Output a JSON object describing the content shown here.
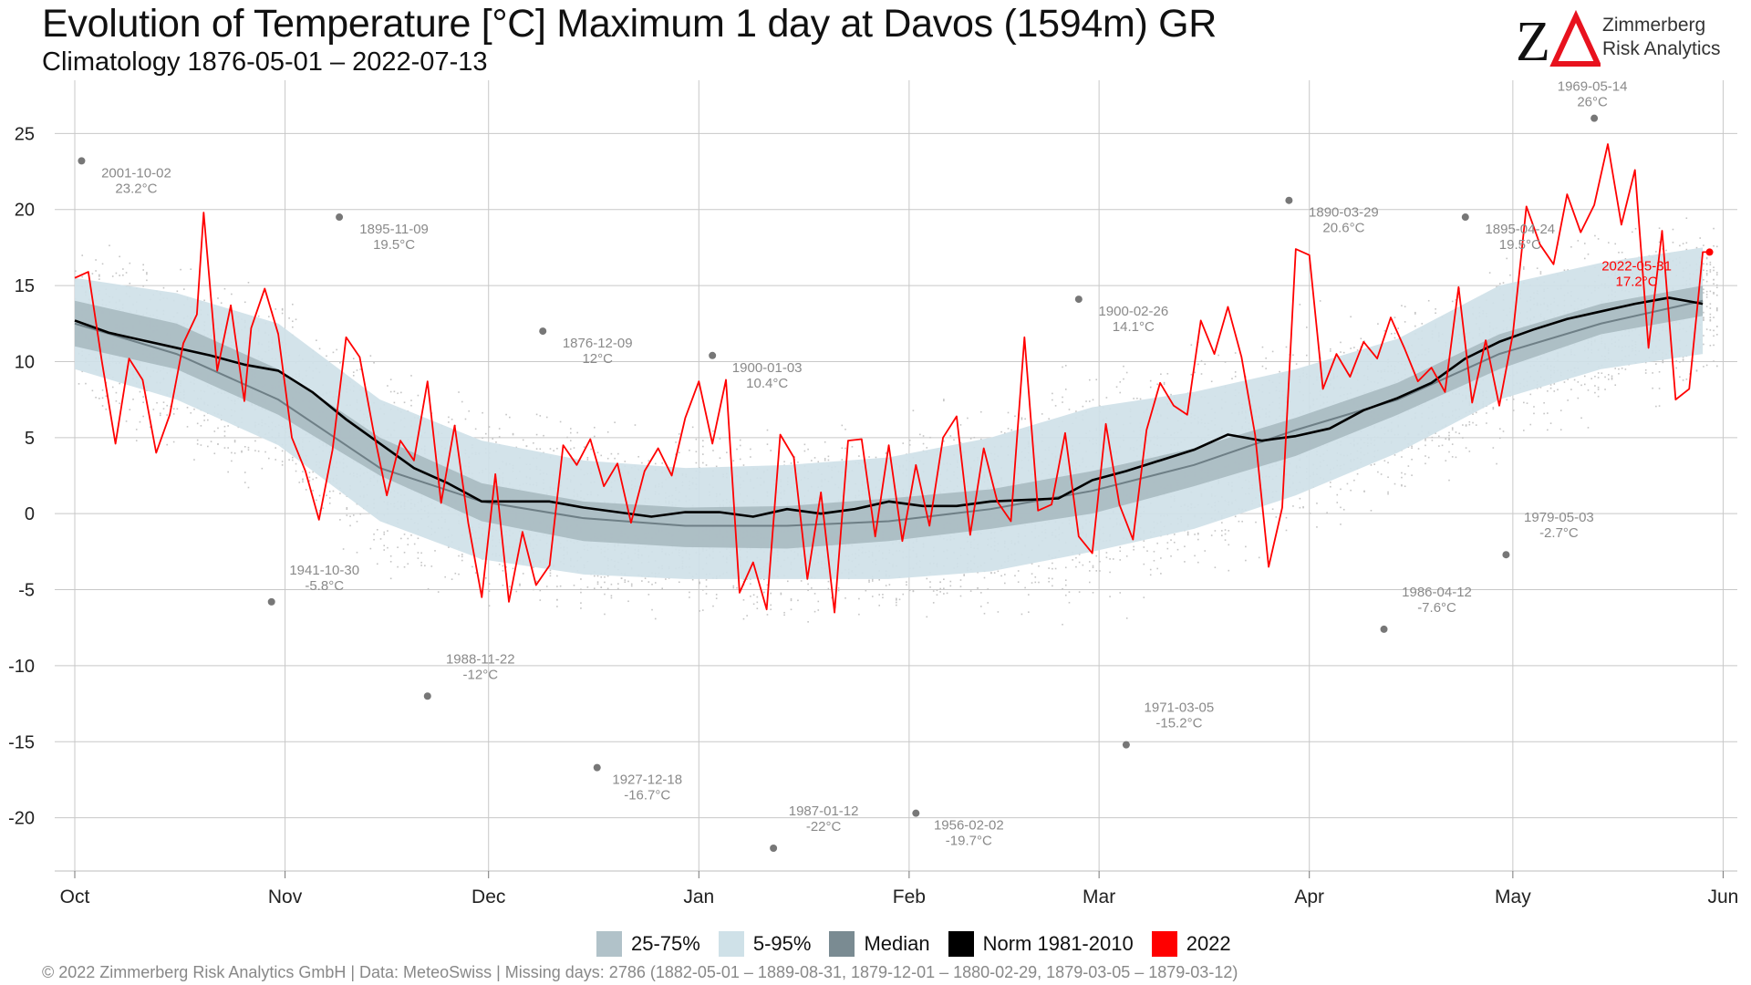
{
  "header": {
    "title": "Evolution of Temperature [°C] Maximum 1 day at Davos (1594m) GR",
    "subtitle": "Climatology 1876-05-01 – 2022-07-13"
  },
  "logo": {
    "mark": "ZΔ",
    "line1": "Zimmerberg",
    "line2": "Risk Analytics",
    "colors": {
      "z": "#111111",
      "delta": "#e8121e"
    }
  },
  "legend": {
    "items": [
      {
        "label": "25-75%",
        "color": "#b1c2c9"
      },
      {
        "label": "5-95%",
        "color": "#cfe1e8"
      },
      {
        "label": "Median",
        "color": "#7a8b92"
      },
      {
        "label": "Norm 1981-2010",
        "color": "#000000"
      },
      {
        "label": "2022",
        "color": "#ff0000"
      }
    ]
  },
  "footer": {
    "text": "©  2022 Zimmerberg Risk Analytics GmbH | Data: MeteoSwiss | Missing days: 2786 (1882-05-01 – 1889-08-31, 1879-12-01 – 1880-02-29, 1879-03-05 – 1879-03-12)"
  },
  "chart_data": {
    "type": "line",
    "title": "Evolution of Temperature [°C] Maximum 1 day at Davos (1594m) GR",
    "xlabel": "",
    "ylabel": "",
    "ylim": [
      -23.5,
      28.5
    ],
    "yticks": [
      25,
      20,
      15,
      10,
      5,
      0,
      -5,
      -10,
      -15,
      -20
    ],
    "xlim_day": [
      0,
      242
    ],
    "xticks": [
      {
        "label": "Oct",
        "day": 0
      },
      {
        "label": "Nov",
        "day": 31
      },
      {
        "label": "Dec",
        "day": 61
      },
      {
        "label": "Jan",
        "day": 92
      },
      {
        "label": "Feb",
        "day": 123
      },
      {
        "label": "Mar",
        "day": 151
      },
      {
        "label": "Apr",
        "day": 182
      },
      {
        "label": "May",
        "day": 212
      },
      {
        "label": "Jun",
        "day": 243
      }
    ],
    "grid": true,
    "x_unit": "day of season starting Oct 1",
    "bands": {
      "days": [
        0,
        15,
        30,
        45,
        60,
        75,
        90,
        105,
        120,
        135,
        150,
        165,
        180,
        195,
        210,
        225,
        240
      ],
      "p05": [
        9.5,
        7.5,
        4.5,
        -0.5,
        -3.0,
        -4.0,
        -4.3,
        -4.3,
        -4.3,
        -3.8,
        -2.5,
        -1.0,
        1.2,
        4.0,
        7.5,
        9.5,
        10.5
      ],
      "p25": [
        11.0,
        9.5,
        6.5,
        2.5,
        -0.5,
        -1.8,
        -2.2,
        -2.3,
        -1.8,
        -1.0,
        0.0,
        1.8,
        3.8,
        6.5,
        9.5,
        11.8,
        13.0
      ],
      "p75": [
        14.0,
        12.5,
        9.5,
        5.0,
        2.0,
        0.8,
        0.4,
        0.5,
        1.0,
        1.6,
        2.8,
        4.3,
        6.3,
        8.6,
        11.8,
        13.8,
        15.0
      ],
      "p95": [
        15.5,
        14.5,
        12.5,
        7.5,
        4.8,
        3.5,
        3.0,
        3.2,
        3.7,
        5.0,
        7.0,
        8.0,
        9.5,
        11.5,
        15.0,
        16.5,
        17.5
      ],
      "median": [
        12.5,
        10.5,
        7.5,
        3.0,
        0.8,
        -0.3,
        -0.8,
        -0.8,
        -0.5,
        0.3,
        1.5,
        3.2,
        5.5,
        7.5,
        10.5,
        12.5,
        14.0
      ]
    },
    "series": [
      {
        "name": "Norm 1981-2010",
        "color": "#000000",
        "x": [
          0,
          5,
          10,
          15,
          20,
          25,
          30,
          35,
          40,
          45,
          50,
          55,
          60,
          65,
          70,
          75,
          80,
          85,
          90,
          95,
          100,
          105,
          110,
          115,
          120,
          125,
          130,
          135,
          140,
          145,
          150,
          155,
          160,
          165,
          170,
          175,
          180,
          185,
          190,
          195,
          200,
          205,
          210,
          215,
          220,
          225,
          230,
          235,
          240
        ],
        "y": [
          12.7,
          11.9,
          11.4,
          10.9,
          10.4,
          9.8,
          9.4,
          8.0,
          6.2,
          4.6,
          3.0,
          2.0,
          0.8,
          0.8,
          0.8,
          0.4,
          0.1,
          -0.2,
          0.1,
          0.1,
          -0.2,
          0.3,
          0.0,
          0.3,
          0.8,
          0.5,
          0.5,
          0.8,
          0.9,
          1.0,
          2.2,
          2.8,
          3.5,
          4.2,
          5.2,
          4.8,
          5.1,
          5.6,
          6.8,
          7.6,
          8.6,
          10.2,
          11.3,
          12.1,
          12.8,
          13.3,
          13.8,
          14.2,
          13.8
        ]
      },
      {
        "name": "2022",
        "color": "#ff0000",
        "x": [
          0,
          2,
          4,
          6,
          8,
          10,
          12,
          14,
          16,
          18,
          19,
          21,
          23,
          25,
          26,
          28,
          30,
          32,
          34,
          36,
          38,
          40,
          42,
          44,
          46,
          48,
          50,
          52,
          54,
          56,
          58,
          60,
          62,
          64,
          66,
          68,
          70,
          72,
          74,
          76,
          78,
          80,
          82,
          84,
          86,
          88,
          90,
          92,
          94,
          96,
          98,
          100,
          102,
          104,
          106,
          108,
          110,
          112,
          114,
          116,
          118,
          120,
          122,
          124,
          126,
          128,
          130,
          132,
          134,
          136,
          138,
          140,
          142,
          144,
          146,
          148,
          150,
          152,
          154,
          156,
          158,
          160,
          162,
          164,
          166,
          168,
          170,
          172,
          174,
          176,
          178,
          180,
          182,
          184,
          186,
          188,
          190,
          192,
          194,
          196,
          198,
          200,
          202,
          204,
          206,
          208,
          210,
          212,
          214,
          216,
          218,
          220,
          222,
          224,
          226,
          228,
          230,
          232,
          234,
          236,
          238,
          240,
          241
        ],
        "y": [
          15.5,
          15.9,
          10.0,
          4.6,
          10.2,
          8.8,
          4.0,
          6.5,
          11.2,
          13.1,
          19.8,
          9.4,
          13.7,
          7.4,
          12.2,
          14.8,
          11.8,
          5.0,
          2.8,
          -0.4,
          4.2,
          11.6,
          10.3,
          5.5,
          1.2,
          4.8,
          3.5,
          8.7,
          0.7,
          5.8,
          -0.6,
          -5.5,
          2.6,
          -5.8,
          -1.2,
          -4.7,
          -3.4,
          4.5,
          3.2,
          4.9,
          1.8,
          3.3,
          -0.6,
          2.8,
          4.3,
          2.5,
          6.3,
          8.7,
          4.6,
          8.8,
          -5.2,
          -3.2,
          -6.3,
          5.2,
          3.7,
          -4.3,
          1.4,
          -6.5,
          4.8,
          4.9,
          -1.5,
          4.5,
          -1.8,
          3.2,
          -0.8,
          5.0,
          6.4,
          -1.4,
          4.3,
          0.8,
          -0.5,
          11.6,
          0.2,
          0.6,
          5.3,
          -1.5,
          -2.6,
          5.9,
          0.6,
          -1.7,
          5.5,
          8.6,
          7.1,
          6.5,
          12.7,
          10.5,
          13.6,
          10.3,
          5.2,
          -3.5,
          0.4,
          17.4,
          17.0,
          8.2,
          10.5,
          9.0,
          11.3,
          10.2,
          12.9,
          10.9,
          8.7,
          9.6,
          8.0,
          14.9,
          7.3,
          11.4,
          7.1,
          11.8,
          20.2,
          17.7,
          16.4,
          21.0,
          18.5,
          20.3,
          24.3,
          19.0,
          22.6,
          10.9,
          18.6,
          7.5,
          8.2,
          17.2,
          17.2
        ]
      }
    ],
    "scatter_range_note": "grey dots show daily values of all years",
    "records": [
      {
        "date": "2001-10-02",
        "value": "23.2°C",
        "day": 1,
        "y": 23.2,
        "color": "#888888"
      },
      {
        "date": "1895-11-09",
        "value": "19.5°C",
        "day": 39,
        "y": 19.5,
        "color": "#888888"
      },
      {
        "date": "1876-12-09",
        "value": "12°C",
        "day": 69,
        "y": 12.0,
        "color": "#888888"
      },
      {
        "date": "1900-01-03",
        "value": "10.4°C",
        "day": 94,
        "y": 10.4,
        "color": "#888888"
      },
      {
        "date": "1900-02-26",
        "value": "14.1°C",
        "day": 148,
        "y": 14.1,
        "color": "#888888"
      },
      {
        "date": "1890-03-29",
        "value": "20.6°C",
        "day": 179,
        "y": 20.6,
        "color": "#888888"
      },
      {
        "date": "1895-04-24",
        "value": "19.5°C",
        "day": 205,
        "y": 19.5,
        "color": "#888888"
      },
      {
        "date": "1969-05-14",
        "value": "26°C",
        "day": 224,
        "y": 26.0,
        "color": "#888888"
      },
      {
        "date": "2022-05-31",
        "value": "17.2°C",
        "day": 241,
        "y": 17.2,
        "color": "#ff0000"
      },
      {
        "date": "1941-10-30",
        "value": "-5.8°C",
        "day": 29,
        "y": -5.8,
        "color": "#888888"
      },
      {
        "date": "1988-11-22",
        "value": "-12°C",
        "day": 52,
        "y": -12.0,
        "color": "#888888"
      },
      {
        "date": "1927-12-18",
        "value": "-16.7°C",
        "day": 77,
        "y": -16.7,
        "color": "#888888"
      },
      {
        "date": "1987-01-12",
        "value": "-22°C",
        "day": 103,
        "y": -22.0,
        "color": "#888888"
      },
      {
        "date": "1956-02-02",
        "value": "-19.7°C",
        "day": 124,
        "y": -19.7,
        "color": "#888888"
      },
      {
        "date": "1971-03-05",
        "value": "-15.2°C",
        "day": 155,
        "y": -15.2,
        "color": "#888888"
      },
      {
        "date": "1986-04-12",
        "value": "-7.6°C",
        "day": 193,
        "y": -7.6,
        "color": "#888888"
      },
      {
        "date": "1979-05-03",
        "value": "-2.7°C",
        "day": 211,
        "y": -2.7,
        "color": "#888888"
      }
    ]
  }
}
